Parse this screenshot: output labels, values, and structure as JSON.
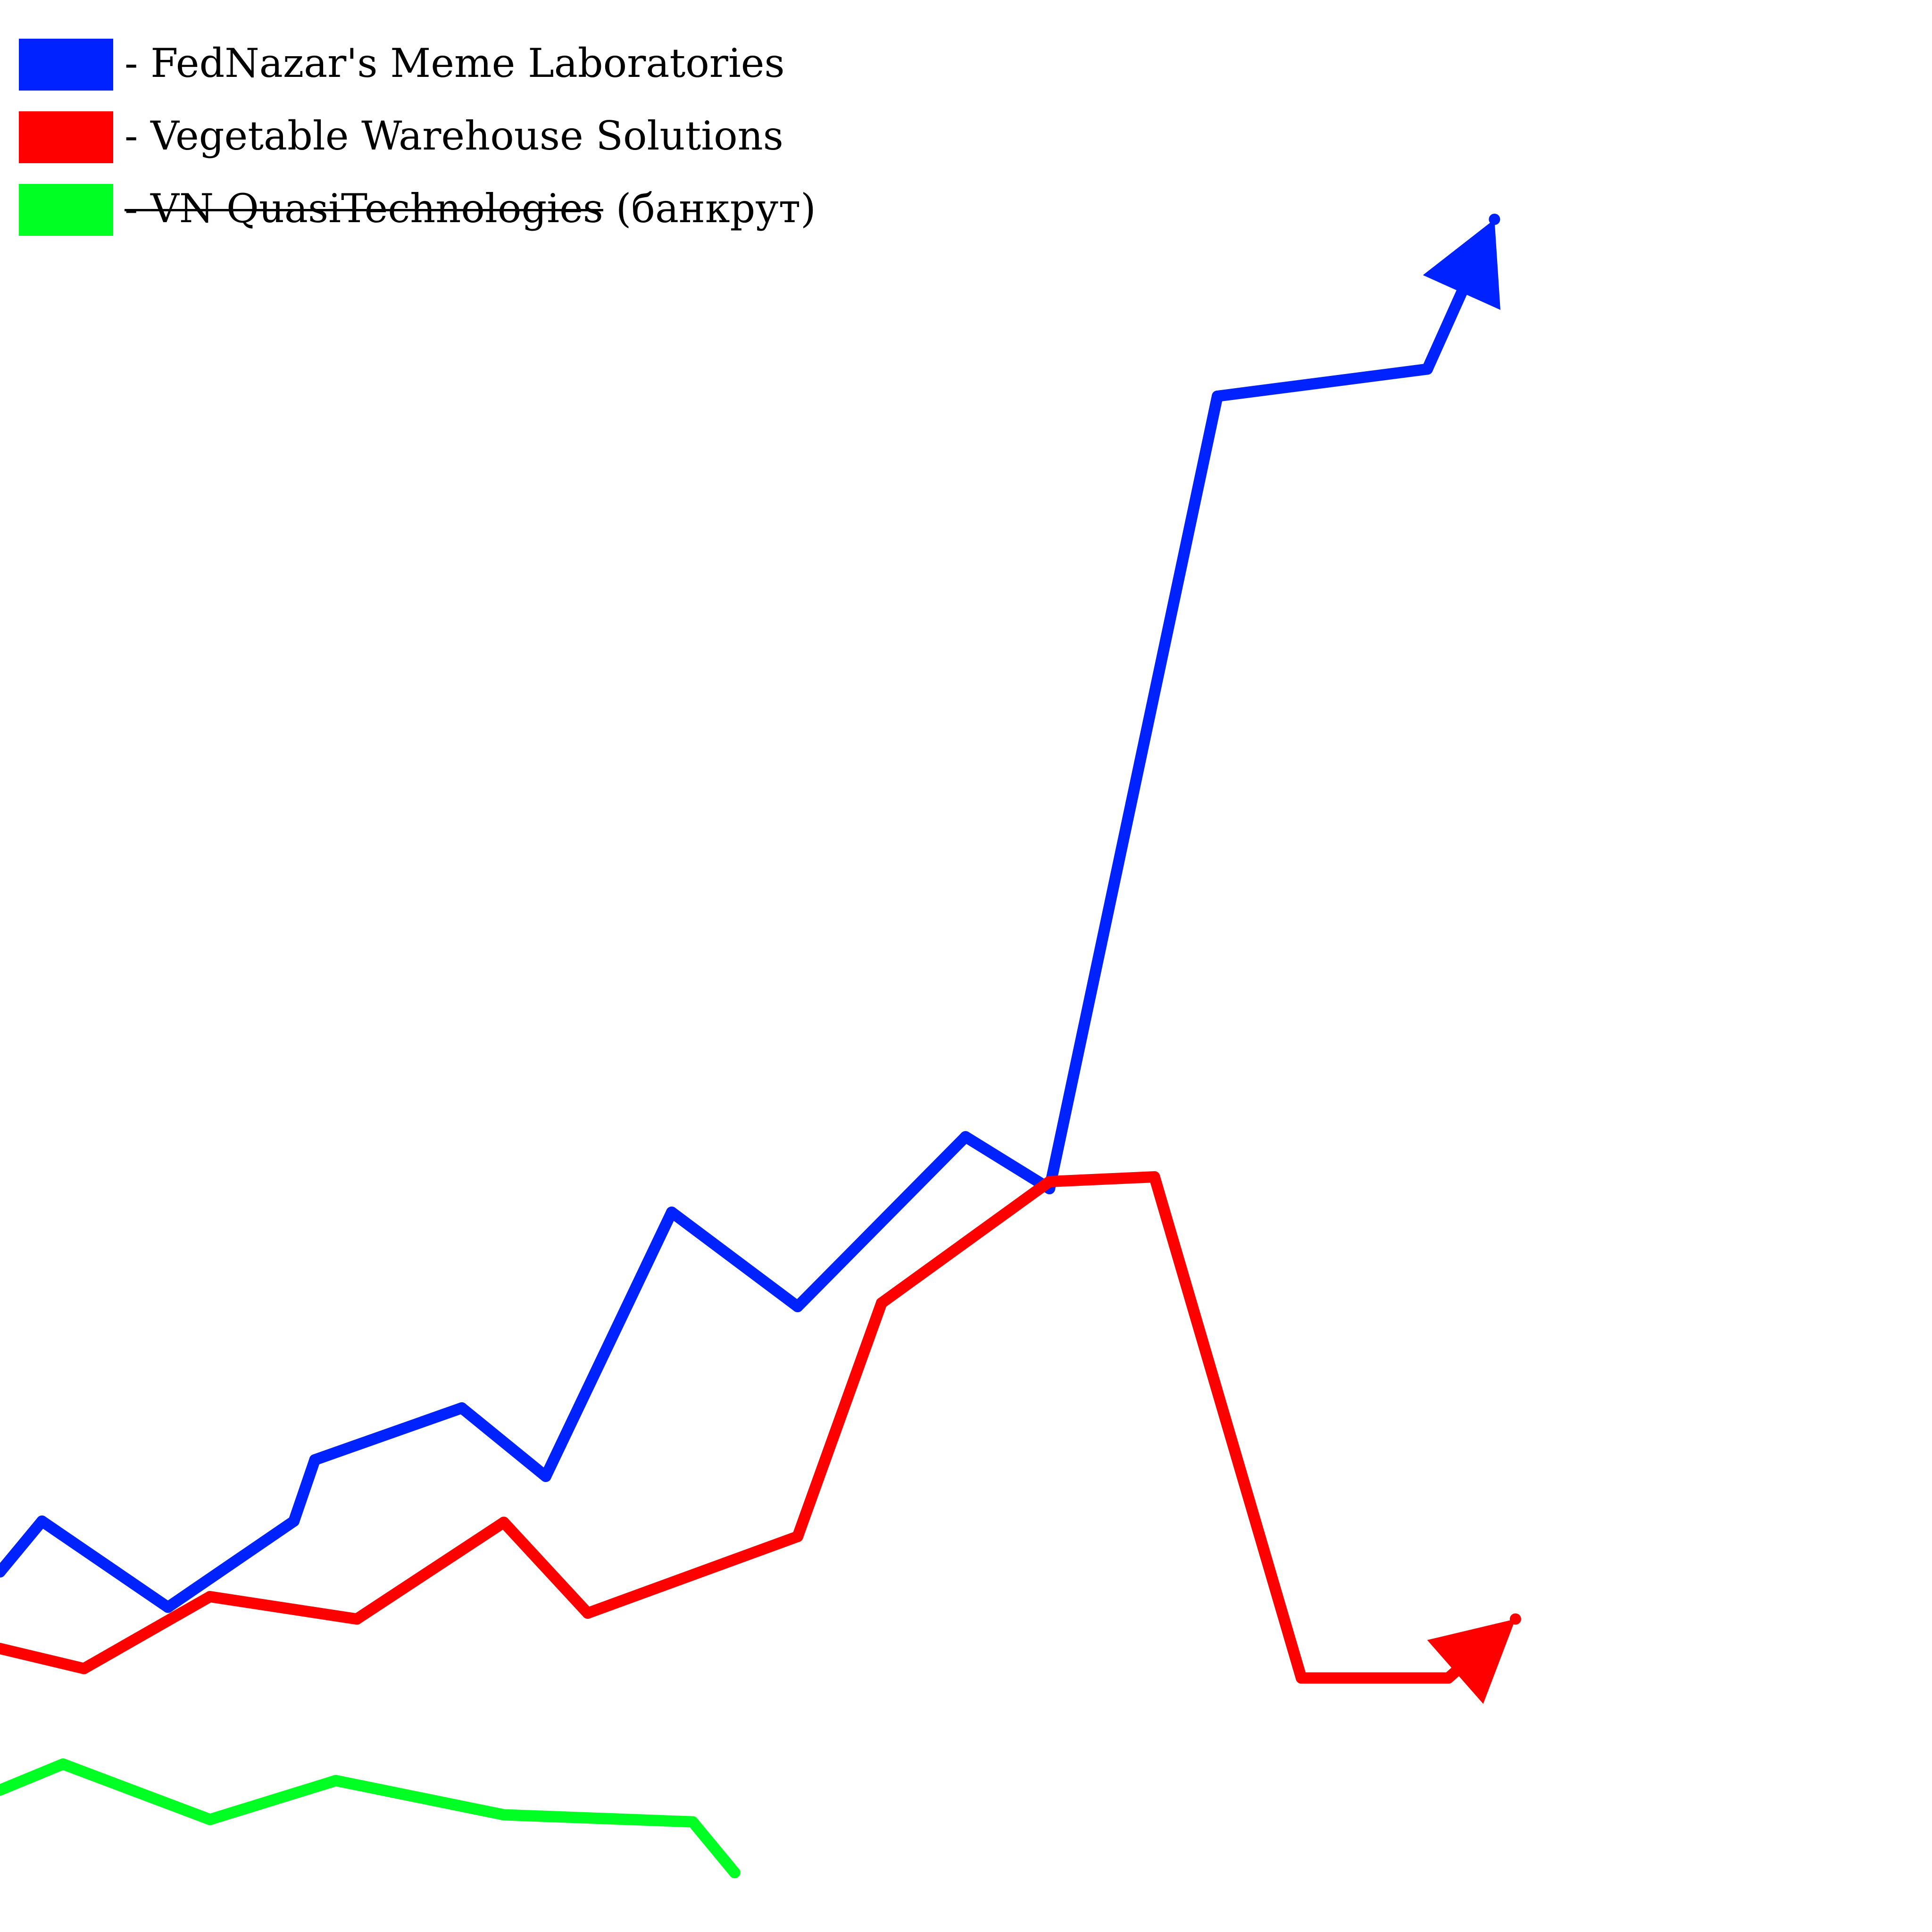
{
  "chart_data": {
    "type": "line",
    "title": "",
    "xlabel": "",
    "ylabel": "",
    "axes_visible": false,
    "grid": false,
    "legend_position": "top-left",
    "series": [
      {
        "name": "FedNazar's Meme Laboratories",
        "label_prefix": "- ",
        "label_suffix": "",
        "strikethrough": false,
        "color": "#0022ff",
        "ends_with_arrow": true,
        "values": [
          [
            0,
            225
          ],
          [
            1,
            268
          ],
          [
            4,
            195
          ],
          [
            7,
            268
          ],
          [
            7.5,
            320
          ],
          [
            11,
            364
          ],
          [
            13,
            306
          ],
          [
            16,
            530
          ],
          [
            19,
            450
          ],
          [
            23,
            594
          ],
          [
            25,
            550
          ],
          [
            29,
            1222
          ],
          [
            34,
            1245
          ],
          [
            35.6,
            1372
          ]
        ]
      },
      {
        "name": "Vegetable Warehouse Solutions",
        "label_prefix": "- ",
        "label_suffix": "",
        "strikethrough": false,
        "color": "#ff0000",
        "ends_with_arrow": true,
        "values": [
          [
            0,
            160
          ],
          [
            2,
            143
          ],
          [
            5,
            204
          ],
          [
            8.5,
            185
          ],
          [
            12,
            267
          ],
          [
            14,
            190
          ],
          [
            19,
            255
          ],
          [
            21,
            453
          ],
          [
            25,
            556
          ],
          [
            27.5,
            560
          ],
          [
            31,
            135
          ],
          [
            34.5,
            135
          ],
          [
            36.1,
            185
          ]
        ]
      },
      {
        "name": "VN QuasiTechnologies",
        "label_prefix": "- ",
        "label_suffix": " (банкрут)",
        "strikethrough": true,
        "color": "#00ff22",
        "ends_with_arrow": false,
        "values": [
          [
            0,
            40
          ],
          [
            1.5,
            62
          ],
          [
            5,
            15
          ],
          [
            8,
            48
          ],
          [
            12,
            19
          ],
          [
            16.5,
            13
          ],
          [
            17.5,
            -30
          ]
        ]
      }
    ]
  }
}
